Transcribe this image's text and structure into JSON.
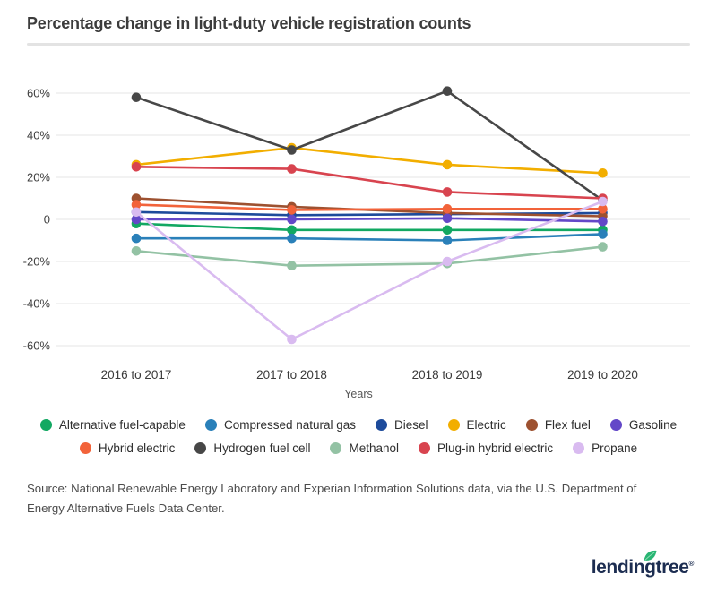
{
  "page": {
    "title": "Percentage change in light-duty vehicle registration counts"
  },
  "chart_data": {
    "type": "line",
    "title": "Percentage change in light-duty vehicle registration counts",
    "categories": [
      "2016 to 2017",
      "2017 to 2018",
      "2018 to 2019",
      "2019 to 2020"
    ],
    "xlabel": "Years",
    "ylabel": "",
    "ylim": [
      -60,
      60
    ],
    "grid": "horizontal",
    "legend_position": "bottom",
    "yticks": [
      {
        "v": 60,
        "label": "60%"
      },
      {
        "v": 40,
        "label": "40%"
      },
      {
        "v": 20,
        "label": "20%"
      },
      {
        "v": 0,
        "label": "0"
      },
      {
        "v": -20,
        "label": "-20%"
      },
      {
        "v": -40,
        "label": "-40%"
      },
      {
        "v": -60,
        "label": "-60%"
      }
    ],
    "series": [
      {
        "name": "Alternative fuel-capable",
        "color": "#12a862",
        "values": [
          -2,
          -5,
          -5,
          -5
        ]
      },
      {
        "name": "Compressed natural gas",
        "color": "#2a80b9",
        "values": [
          -9,
          -9,
          -10,
          -7
        ]
      },
      {
        "name": "Diesel",
        "color": "#1d4b9b",
        "values": [
          3.5,
          2,
          2.5,
          3
        ]
      },
      {
        "name": "Electric",
        "color": "#f2ae00",
        "values": [
          26,
          34,
          26,
          22
        ]
      },
      {
        "name": "Flex fuel",
        "color": "#9d5130",
        "values": [
          10,
          6,
          3,
          1.5
        ]
      },
      {
        "name": "Gasoline",
        "color": "#6348c8",
        "values": [
          0,
          0,
          0.5,
          -1
        ]
      },
      {
        "name": "Hybrid electric",
        "color": "#f2633a",
        "values": [
          7,
          4.5,
          5,
          5
        ]
      },
      {
        "name": "Hydrogen fuel cell",
        "color": "#474747",
        "values": [
          58,
          33,
          61,
          9
        ]
      },
      {
        "name": "Methanol",
        "color": "#93c2a4",
        "values": [
          -15,
          -22,
          -21,
          -13
        ]
      },
      {
        "name": "Plug-in hybrid electric",
        "color": "#d8444f",
        "values": [
          25,
          24,
          13,
          10
        ]
      },
      {
        "name": "Propane",
        "color": "#d9bbf0",
        "values": [
          3.5,
          -57,
          -20,
          8.5
        ]
      }
    ]
  },
  "source": {
    "text": "Source: National Renewable Energy Laboratory and Experian Information Solutions data, via the U.S. Department of Energy Alternative Fuels Data Center."
  },
  "logo": {
    "text": "lendingtree",
    "reg": "®",
    "leaf_color": "#29b573",
    "text_color": "#1c2d51"
  }
}
